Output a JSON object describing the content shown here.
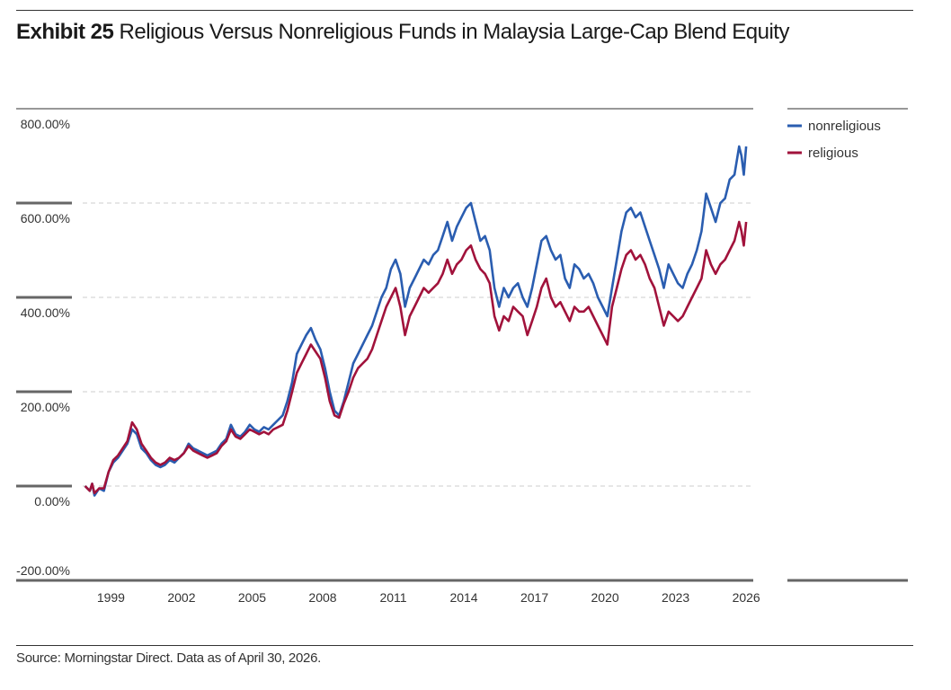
{
  "title": {
    "label": "Exhibit 25",
    "text": "Religious Versus Nonreligious Funds in Malaysia Large-Cap Blend Equity"
  },
  "source": "Source: Morningstar Direct. Data as of April 30, 2026.",
  "chart_data": {
    "type": "line",
    "ylim": [
      -200,
      800
    ],
    "yticks": [
      -200,
      0,
      200,
      400,
      600,
      800
    ],
    "ytick_labels": [
      "-200.00%",
      "0.00%",
      "200.00%",
      "400.00%",
      "600.00%",
      "800.00%"
    ],
    "xlim": [
      1997.8,
      2026.3
    ],
    "xticks": [
      1999,
      2002,
      2005,
      2008,
      2011,
      2014,
      2017,
      2020,
      2023,
      2026
    ],
    "xtick_labels": [
      "1999",
      "2002",
      "2005",
      "2008",
      "2011",
      "2014",
      "2017",
      "2020",
      "2023",
      "2026"
    ],
    "grid": true,
    "legend_position": "top-right",
    "series": [
      {
        "name": "nonreligious",
        "color": "#2a5db0",
        "points": [
          [
            1997.9,
            0
          ],
          [
            1998.1,
            -10
          ],
          [
            1998.2,
            5
          ],
          [
            1998.3,
            -20
          ],
          [
            1998.5,
            -5
          ],
          [
            1998.7,
            -10
          ],
          [
            1998.9,
            30
          ],
          [
            1999.1,
            50
          ],
          [
            1999.3,
            60
          ],
          [
            1999.5,
            75
          ],
          [
            1999.7,
            90
          ],
          [
            1999.9,
            120
          ],
          [
            2000.1,
            110
          ],
          [
            2000.3,
            80
          ],
          [
            2000.5,
            70
          ],
          [
            2000.7,
            55
          ],
          [
            2000.9,
            45
          ],
          [
            2001.1,
            40
          ],
          [
            2001.3,
            45
          ],
          [
            2001.5,
            55
          ],
          [
            2001.7,
            50
          ],
          [
            2001.9,
            60
          ],
          [
            2002.1,
            70
          ],
          [
            2002.3,
            90
          ],
          [
            2002.5,
            80
          ],
          [
            2002.7,
            75
          ],
          [
            2002.9,
            70
          ],
          [
            2003.1,
            65
          ],
          [
            2003.3,
            70
          ],
          [
            2003.5,
            75
          ],
          [
            2003.7,
            90
          ],
          [
            2003.9,
            100
          ],
          [
            2004.1,
            130
          ],
          [
            2004.3,
            110
          ],
          [
            2004.5,
            105
          ],
          [
            2004.7,
            115
          ],
          [
            2004.9,
            130
          ],
          [
            2005.1,
            120
          ],
          [
            2005.3,
            115
          ],
          [
            2005.5,
            125
          ],
          [
            2005.7,
            120
          ],
          [
            2005.9,
            130
          ],
          [
            2006.1,
            140
          ],
          [
            2006.3,
            150
          ],
          [
            2006.5,
            180
          ],
          [
            2006.7,
            220
          ],
          [
            2006.9,
            280
          ],
          [
            2007.1,
            300
          ],
          [
            2007.3,
            320
          ],
          [
            2007.5,
            335
          ],
          [
            2007.7,
            310
          ],
          [
            2007.9,
            290
          ],
          [
            2008.1,
            250
          ],
          [
            2008.3,
            200
          ],
          [
            2008.5,
            160
          ],
          [
            2008.7,
            150
          ],
          [
            2008.9,
            180
          ],
          [
            2009.1,
            220
          ],
          [
            2009.3,
            260
          ],
          [
            2009.5,
            280
          ],
          [
            2009.7,
            300
          ],
          [
            2009.9,
            320
          ],
          [
            2010.1,
            340
          ],
          [
            2010.3,
            370
          ],
          [
            2010.5,
            400
          ],
          [
            2010.7,
            420
          ],
          [
            2010.9,
            460
          ],
          [
            2011.1,
            480
          ],
          [
            2011.3,
            450
          ],
          [
            2011.5,
            380
          ],
          [
            2011.7,
            420
          ],
          [
            2011.9,
            440
          ],
          [
            2012.1,
            460
          ],
          [
            2012.3,
            480
          ],
          [
            2012.5,
            470
          ],
          [
            2012.7,
            490
          ],
          [
            2012.9,
            500
          ],
          [
            2013.1,
            530
          ],
          [
            2013.3,
            560
          ],
          [
            2013.5,
            520
          ],
          [
            2013.7,
            550
          ],
          [
            2013.9,
            570
          ],
          [
            2014.1,
            590
          ],
          [
            2014.3,
            600
          ],
          [
            2014.5,
            560
          ],
          [
            2014.7,
            520
          ],
          [
            2014.9,
            530
          ],
          [
            2015.1,
            500
          ],
          [
            2015.3,
            420
          ],
          [
            2015.5,
            380
          ],
          [
            2015.7,
            420
          ],
          [
            2015.9,
            400
          ],
          [
            2016.1,
            420
          ],
          [
            2016.3,
            430
          ],
          [
            2016.5,
            400
          ],
          [
            2016.7,
            380
          ],
          [
            2016.9,
            420
          ],
          [
            2017.1,
            470
          ],
          [
            2017.3,
            520
          ],
          [
            2017.5,
            530
          ],
          [
            2017.7,
            500
          ],
          [
            2017.9,
            480
          ],
          [
            2018.1,
            490
          ],
          [
            2018.3,
            440
          ],
          [
            2018.5,
            420
          ],
          [
            2018.7,
            470
          ],
          [
            2018.9,
            460
          ],
          [
            2019.1,
            440
          ],
          [
            2019.3,
            450
          ],
          [
            2019.5,
            430
          ],
          [
            2019.7,
            400
          ],
          [
            2019.9,
            380
          ],
          [
            2020.1,
            360
          ],
          [
            2020.3,
            420
          ],
          [
            2020.5,
            480
          ],
          [
            2020.7,
            540
          ],
          [
            2020.9,
            580
          ],
          [
            2021.1,
            590
          ],
          [
            2021.3,
            570
          ],
          [
            2021.5,
            580
          ],
          [
            2021.7,
            550
          ],
          [
            2021.9,
            520
          ],
          [
            2022.1,
            490
          ],
          [
            2022.3,
            460
          ],
          [
            2022.5,
            420
          ],
          [
            2022.7,
            470
          ],
          [
            2022.9,
            450
          ],
          [
            2023.1,
            430
          ],
          [
            2023.3,
            420
          ],
          [
            2023.5,
            450
          ],
          [
            2023.7,
            470
          ],
          [
            2023.9,
            500
          ],
          [
            2024.1,
            540
          ],
          [
            2024.3,
            620
          ],
          [
            2024.5,
            590
          ],
          [
            2024.7,
            560
          ],
          [
            2024.9,
            600
          ],
          [
            2025.1,
            610
          ],
          [
            2025.3,
            650
          ],
          [
            2025.5,
            660
          ],
          [
            2025.7,
            720
          ],
          [
            2025.8,
            700
          ],
          [
            2025.9,
            660
          ],
          [
            2026.0,
            720
          ]
        ]
      },
      {
        "name": "religious",
        "color": "#a1123b",
        "points": [
          [
            1997.9,
            0
          ],
          [
            1998.1,
            -10
          ],
          [
            1998.2,
            5
          ],
          [
            1998.3,
            -15
          ],
          [
            1998.5,
            -5
          ],
          [
            1998.7,
            -5
          ],
          [
            1998.9,
            30
          ],
          [
            1999.1,
            55
          ],
          [
            1999.3,
            65
          ],
          [
            1999.5,
            80
          ],
          [
            1999.7,
            95
          ],
          [
            1999.9,
            135
          ],
          [
            2000.1,
            120
          ],
          [
            2000.3,
            90
          ],
          [
            2000.5,
            75
          ],
          [
            2000.7,
            60
          ],
          [
            2000.9,
            50
          ],
          [
            2001.1,
            45
          ],
          [
            2001.3,
            50
          ],
          [
            2001.5,
            60
          ],
          [
            2001.7,
            55
          ],
          [
            2001.9,
            60
          ],
          [
            2002.1,
            70
          ],
          [
            2002.3,
            85
          ],
          [
            2002.5,
            75
          ],
          [
            2002.7,
            70
          ],
          [
            2002.9,
            65
          ],
          [
            2003.1,
            60
          ],
          [
            2003.3,
            65
          ],
          [
            2003.5,
            70
          ],
          [
            2003.7,
            85
          ],
          [
            2003.9,
            95
          ],
          [
            2004.1,
            120
          ],
          [
            2004.3,
            105
          ],
          [
            2004.5,
            100
          ],
          [
            2004.7,
            110
          ],
          [
            2004.9,
            120
          ],
          [
            2005.1,
            115
          ],
          [
            2005.3,
            110
          ],
          [
            2005.5,
            115
          ],
          [
            2005.7,
            110
          ],
          [
            2005.9,
            120
          ],
          [
            2006.1,
            125
          ],
          [
            2006.3,
            130
          ],
          [
            2006.5,
            160
          ],
          [
            2006.7,
            200
          ],
          [
            2006.9,
            240
          ],
          [
            2007.1,
            260
          ],
          [
            2007.3,
            280
          ],
          [
            2007.5,
            300
          ],
          [
            2007.7,
            285
          ],
          [
            2007.9,
            270
          ],
          [
            2008.1,
            230
          ],
          [
            2008.3,
            180
          ],
          [
            2008.5,
            150
          ],
          [
            2008.7,
            145
          ],
          [
            2008.9,
            175
          ],
          [
            2009.1,
            200
          ],
          [
            2009.3,
            230
          ],
          [
            2009.5,
            250
          ],
          [
            2009.7,
            260
          ],
          [
            2009.9,
            270
          ],
          [
            2010.1,
            290
          ],
          [
            2010.3,
            320
          ],
          [
            2010.5,
            350
          ],
          [
            2010.7,
            380
          ],
          [
            2010.9,
            400
          ],
          [
            2011.1,
            420
          ],
          [
            2011.3,
            380
          ],
          [
            2011.5,
            320
          ],
          [
            2011.7,
            360
          ],
          [
            2011.9,
            380
          ],
          [
            2012.1,
            400
          ],
          [
            2012.3,
            420
          ],
          [
            2012.5,
            410
          ],
          [
            2012.7,
            420
          ],
          [
            2012.9,
            430
          ],
          [
            2013.1,
            450
          ],
          [
            2013.3,
            480
          ],
          [
            2013.5,
            450
          ],
          [
            2013.7,
            470
          ],
          [
            2013.9,
            480
          ],
          [
            2014.1,
            500
          ],
          [
            2014.3,
            510
          ],
          [
            2014.5,
            480
          ],
          [
            2014.7,
            460
          ],
          [
            2014.9,
            450
          ],
          [
            2015.1,
            430
          ],
          [
            2015.3,
            360
          ],
          [
            2015.5,
            330
          ],
          [
            2015.7,
            360
          ],
          [
            2015.9,
            350
          ],
          [
            2016.1,
            380
          ],
          [
            2016.3,
            370
          ],
          [
            2016.5,
            360
          ],
          [
            2016.7,
            320
          ],
          [
            2016.9,
            350
          ],
          [
            2017.1,
            380
          ],
          [
            2017.3,
            420
          ],
          [
            2017.5,
            440
          ],
          [
            2017.7,
            400
          ],
          [
            2017.9,
            380
          ],
          [
            2018.1,
            390
          ],
          [
            2018.3,
            370
          ],
          [
            2018.5,
            350
          ],
          [
            2018.7,
            380
          ],
          [
            2018.9,
            370
          ],
          [
            2019.1,
            370
          ],
          [
            2019.3,
            380
          ],
          [
            2019.5,
            360
          ],
          [
            2019.7,
            340
          ],
          [
            2019.9,
            320
          ],
          [
            2020.1,
            300
          ],
          [
            2020.3,
            380
          ],
          [
            2020.5,
            420
          ],
          [
            2020.7,
            460
          ],
          [
            2020.9,
            490
          ],
          [
            2021.1,
            500
          ],
          [
            2021.3,
            480
          ],
          [
            2021.5,
            490
          ],
          [
            2021.7,
            470
          ],
          [
            2021.9,
            440
          ],
          [
            2022.1,
            420
          ],
          [
            2022.3,
            380
          ],
          [
            2022.5,
            340
          ],
          [
            2022.7,
            370
          ],
          [
            2022.9,
            360
          ],
          [
            2023.1,
            350
          ],
          [
            2023.3,
            360
          ],
          [
            2023.5,
            380
          ],
          [
            2023.7,
            400
          ],
          [
            2023.9,
            420
          ],
          [
            2024.1,
            440
          ],
          [
            2024.3,
            500
          ],
          [
            2024.5,
            470
          ],
          [
            2024.7,
            450
          ],
          [
            2024.9,
            470
          ],
          [
            2025.1,
            480
          ],
          [
            2025.3,
            500
          ],
          [
            2025.5,
            520
          ],
          [
            2025.7,
            560
          ],
          [
            2025.8,
            540
          ],
          [
            2025.9,
            510
          ],
          [
            2026.0,
            560
          ]
        ]
      }
    ]
  }
}
